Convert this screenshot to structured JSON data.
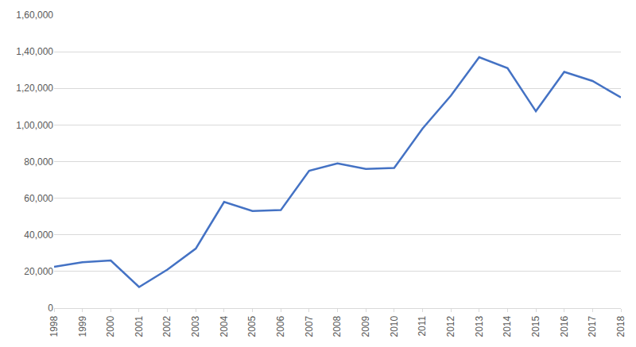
{
  "chart_data": {
    "type": "line",
    "categories": [
      "1998",
      "1999",
      "2000",
      "2001",
      "2002",
      "2003",
      "2004",
      "2005",
      "2006",
      "2007",
      "2008",
      "2009",
      "2010",
      "2011",
      "2012",
      "2013",
      "2014",
      "2015",
      "2016",
      "2017",
      "2018"
    ],
    "values": [
      22500,
      25000,
      26000,
      11500,
      21000,
      32500,
      58000,
      53000,
      53500,
      75000,
      79000,
      76000,
      76500,
      98000,
      116000,
      137000,
      131000,
      107500,
      129000,
      124000,
      115000
    ],
    "color": "#4472c4",
    "ylim": [
      0,
      160000
    ],
    "yticks": [
      0,
      {
        "value": 20000,
        "label": "20,000"
      },
      {
        "value": 40000,
        "label": "40,000"
      },
      {
        "value": 60000,
        "label": "60,000"
      },
      {
        "value": 80000,
        "label": "80,000"
      },
      {
        "value": 100000,
        "label": "1,00,000"
      },
      {
        "value": 120000,
        "label": "1,20,000"
      },
      {
        "value": 140000,
        "label": "1,40,000"
      },
      {
        "value": 160000,
        "label": "1,60,000"
      }
    ],
    "grid": true
  }
}
